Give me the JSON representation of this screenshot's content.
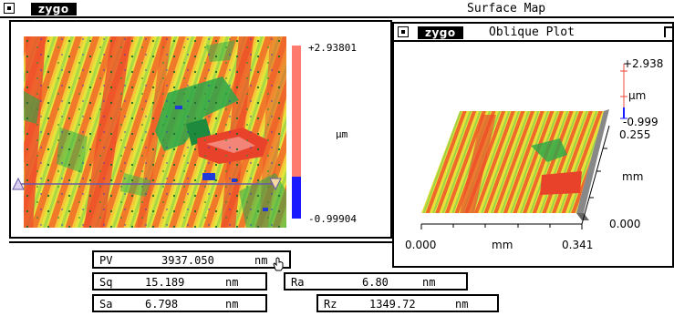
{
  "main_window": {
    "logo": "zygo",
    "title": "Surface Map"
  },
  "surface_map": {
    "scale_max": "+2.93801",
    "scale_min": "-0.99904",
    "scale_unit": "µm",
    "colors": {
      "high": "#ff7a6e",
      "low": "#1a1aff",
      "cursor_line": "#6a5aa8"
    }
  },
  "oblique_window": {
    "logo": "zygo",
    "title": "Oblique Plot",
    "z_max": "+2.938",
    "z_unit": "µm",
    "z_min": "-0.999",
    "y_max": "0.255",
    "y_unit": "mm",
    "y_min": "0.000",
    "x_min": "0.000",
    "x_unit": "mm",
    "x_max": "0.341"
  },
  "results": {
    "pv": {
      "label": "PV",
      "value": "3937.050",
      "unit": "nm"
    },
    "sq": {
      "label": "Sq",
      "value": "15.189",
      "unit": "nm"
    },
    "ra": {
      "label": "Ra",
      "value": "6.80",
      "unit": "nm"
    },
    "sa": {
      "label": "Sa",
      "value": "6.798",
      "unit": "nm"
    },
    "rz": {
      "label": "Rz",
      "value": "1349.72",
      "unit": "nm"
    }
  }
}
